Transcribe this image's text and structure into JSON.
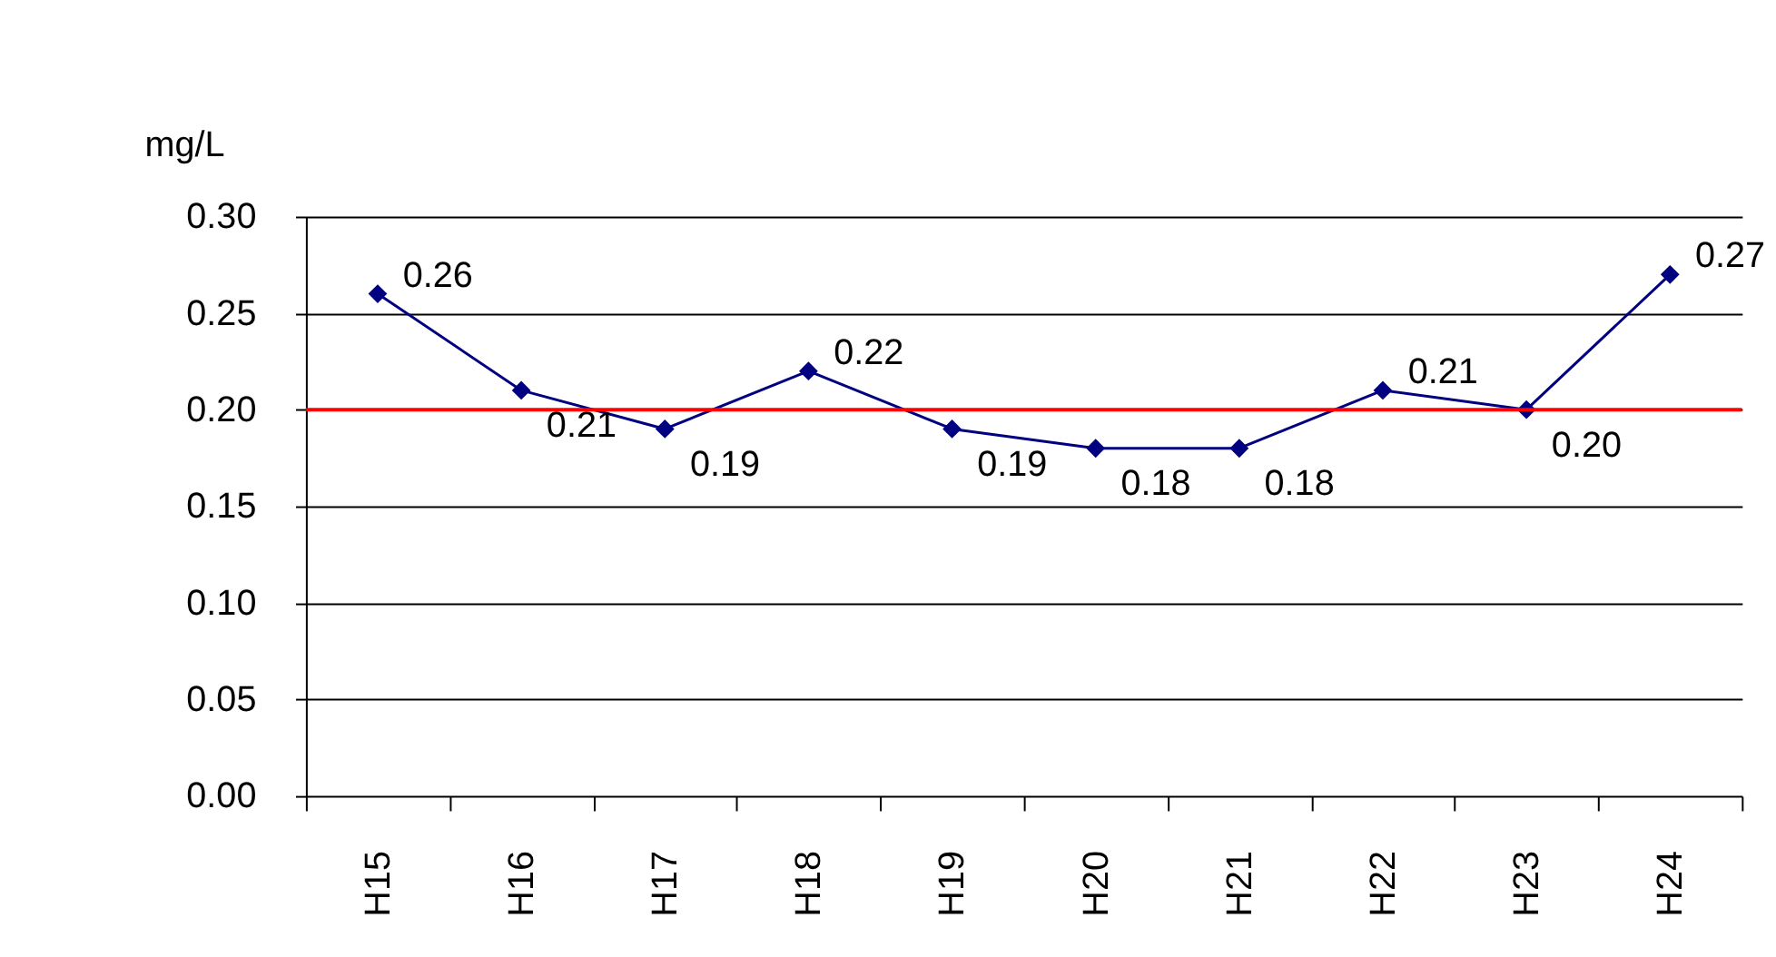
{
  "chart_data": {
    "type": "line",
    "ylabel": "mg/L",
    "categories": [
      "H15",
      "H16",
      "H17",
      "H18",
      "H19",
      "H20",
      "H21",
      "H22",
      "H23",
      "H24"
    ],
    "series": [
      {
        "color": "#000080",
        "values": [
          0.26,
          0.21,
          0.19,
          0.22,
          0.19,
          0.18,
          0.18,
          0.21,
          0.2,
          0.27
        ]
      }
    ],
    "ylim": [
      0,
      0.3
    ],
    "yticks": [
      {
        "value": 0,
        "label": "0.00"
      },
      {
        "value": 0.05,
        "label": "0.05"
      },
      {
        "value": 0.1,
        "label": "0.10"
      },
      {
        "value": 0.15,
        "label": "0.15"
      },
      {
        "value": 0.2,
        "label": "0.20"
      },
      {
        "value": 0.25,
        "label": "0.25"
      },
      {
        "value": 0.3,
        "label": "0.30"
      }
    ],
    "ref_lines": [
      {
        "axis": "y",
        "value": 0.2,
        "color": "#ff0000"
      }
    ],
    "value_labels": [
      "0.26",
      "0.21",
      "0.19",
      "0.22",
      "0.19",
      "0.18",
      "0.18",
      "0.21",
      "0.20",
      "0.27"
    ],
    "grid": "y",
    "marker": "diamond",
    "line_style": "solid"
  }
}
